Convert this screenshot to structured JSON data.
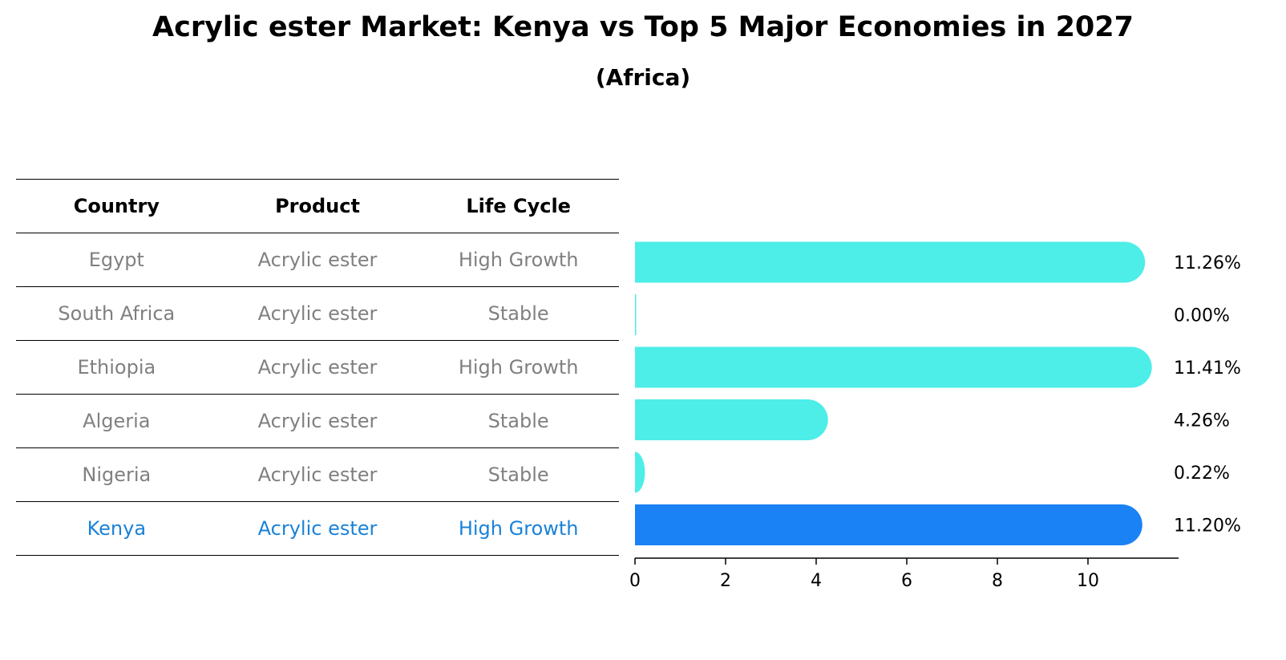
{
  "title": "Acrylic ester Market: Kenya vs Top 5 Major Economies in 2027",
  "subtitle": "(Africa)",
  "colors": {
    "bar": "#4dede8",
    "highlight": "#1a82f5",
    "muted_text": "#808080",
    "highlight_text": "#1a82d8"
  },
  "table": {
    "headers": [
      "Country",
      "Product",
      "Life Cycle"
    ],
    "rows": [
      {
        "country": "Egypt",
        "product": "Acrylic ester",
        "life_cycle": "High Growth"
      },
      {
        "country": "South Africa",
        "product": "Acrylic ester",
        "life_cycle": "Stable"
      },
      {
        "country": "Ethiopia",
        "product": "Acrylic ester",
        "life_cycle": "High Growth"
      },
      {
        "country": "Algeria",
        "product": "Acrylic ester",
        "life_cycle": "Stable"
      },
      {
        "country": "Nigeria",
        "product": "Acrylic ester",
        "life_cycle": "Stable"
      },
      {
        "country": "Kenya",
        "product": "Acrylic ester",
        "life_cycle": "High Growth"
      }
    ]
  },
  "chart_data": {
    "type": "bar",
    "orientation": "horizontal",
    "categories": [
      "Egypt",
      "South Africa",
      "Ethiopia",
      "Algeria",
      "Nigeria",
      "Kenya"
    ],
    "values": [
      11.26,
      0.0,
      11.41,
      4.26,
      0.22,
      11.2
    ],
    "value_labels": [
      "11.26%",
      "0.00%",
      "11.41%",
      "4.26%",
      "0.22%",
      "11.20%"
    ],
    "highlight": "Kenya",
    "xlim": [
      0,
      12
    ],
    "xticks": [
      0,
      2,
      4,
      6,
      8,
      10
    ],
    "xlabel": "",
    "ylabel": ""
  }
}
